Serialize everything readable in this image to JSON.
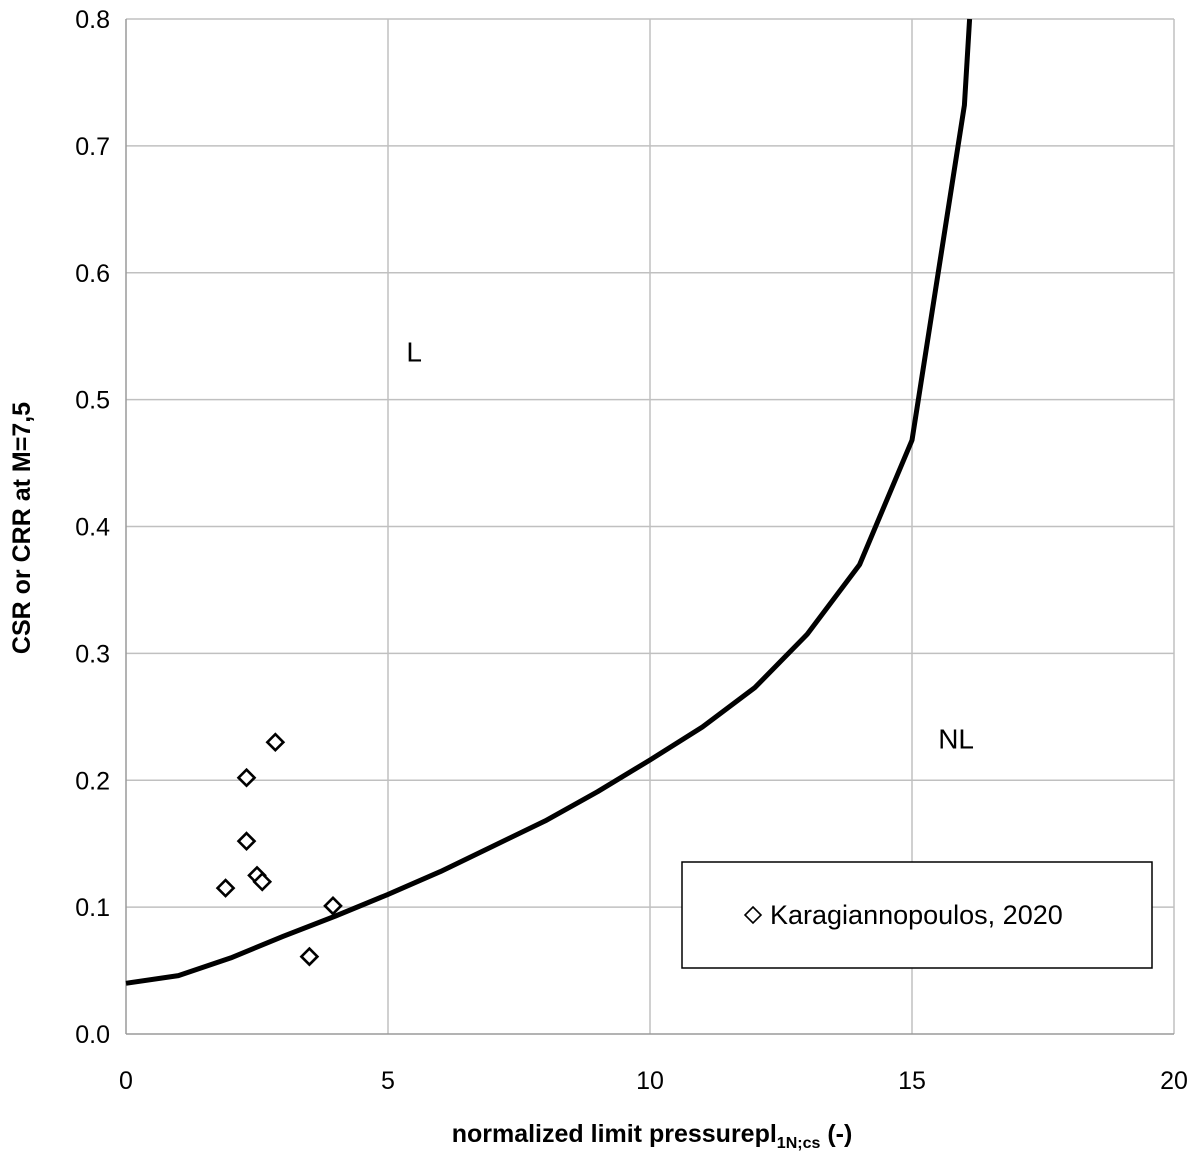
{
  "chart_data": {
    "type": "scatter",
    "xlabel": {
      "prefix": "normalized limit pressurepl",
      "subscript": "1N;cs",
      "suffix": " (-)"
    },
    "ylabel": "CSR or CRR at M=7,5",
    "xlim": [
      0,
      20
    ],
    "ylim": [
      0,
      0.8
    ],
    "x_ticks": [
      "0",
      "5",
      "10",
      "15",
      "20"
    ],
    "y_ticks": [
      "0.0",
      "0.1",
      "0.2",
      "0.3",
      "0.4",
      "0.5",
      "0.6",
      "0.7",
      "0.8"
    ],
    "grid": true,
    "legend_position": "lower-right",
    "series": [
      {
        "name": "Karagiannopoulos, 2020",
        "kind": "scatter",
        "marker": "hollow-diamond",
        "x": [
          1.9,
          2.3,
          2.3,
          2.5,
          2.6,
          2.85,
          3.5,
          3.95
        ],
        "y": [
          0.115,
          0.202,
          0.152,
          0.125,
          0.12,
          0.23,
          0.061,
          0.101
        ]
      },
      {
        "kind": "line",
        "x": [
          0,
          1,
          2,
          3,
          4,
          5,
          6,
          7,
          8,
          9,
          10,
          11,
          12,
          13,
          14,
          15,
          15.5,
          16,
          16.1
        ],
        "y": [
          0.04,
          0.046,
          0.06,
          0.077,
          0.093,
          0.11,
          0.128,
          0.148,
          0.168,
          0.191,
          0.216,
          0.242,
          0.273,
          0.315,
          0.37,
          0.468,
          0.6,
          0.732,
          0.8
        ]
      }
    ],
    "annotations": [
      {
        "text": "L",
        "x": 5.35,
        "y": 0.53
      },
      {
        "text": "NL",
        "x": 15.5,
        "y": 0.225
      }
    ],
    "colors": {
      "line": "#000000",
      "grid": "#c0c0c0",
      "marker_stroke": "#000000",
      "background": "#ffffff"
    }
  }
}
